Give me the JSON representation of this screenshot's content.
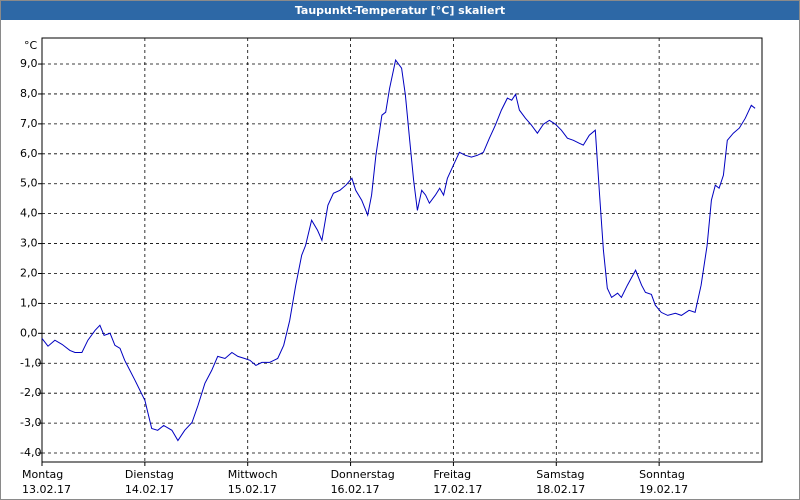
{
  "chart_data": {
    "type": "line",
    "title": "Taupunkt-Temperatur [°C] skaliert",
    "y_unit": "°C",
    "xlim": [
      0,
      168
    ],
    "ylim": [
      -4.3,
      9.87
    ],
    "yticks": [
      {
        "value": 9,
        "label": "9,0"
      },
      {
        "value": 8,
        "label": "8,0"
      },
      {
        "value": 7,
        "label": "7,0"
      },
      {
        "value": 6,
        "label": "6,0"
      },
      {
        "value": 5,
        "label": "5,0"
      },
      {
        "value": 4,
        "label": "4,0"
      },
      {
        "value": 3,
        "label": "3,0"
      },
      {
        "value": 2,
        "label": "2,0"
      },
      {
        "value": 1,
        "label": "1,0"
      },
      {
        "value": 0,
        "label": "0,0"
      },
      {
        "value": -1,
        "label": "-1,0"
      },
      {
        "value": -2,
        "label": "-2,0"
      },
      {
        "value": -3,
        "label": "-3,0"
      },
      {
        "value": -4,
        "label": "-4,0"
      }
    ],
    "xticks": [
      {
        "value": 0,
        "label": [
          "Montag",
          "13.02.17"
        ]
      },
      {
        "value": 24,
        "label": [
          "Dienstag",
          "14.02.17"
        ]
      },
      {
        "value": 48,
        "label": [
          "Mittwoch",
          "15.02.17"
        ]
      },
      {
        "value": 72,
        "label": [
          "Donnerstag",
          "16.02.17"
        ]
      },
      {
        "value": 96,
        "label": [
          "Freitag",
          "17.02.17"
        ]
      },
      {
        "value": 120,
        "label": [
          "Samstag",
          "18.02.17"
        ]
      },
      {
        "value": 144,
        "label": [
          "Sonntag",
          "19.02.17"
        ]
      }
    ],
    "grid": true,
    "series": [
      {
        "color": "#0000c0",
        "x": [
          0,
          1.4,
          3,
          4.7,
          6.5,
          7.7,
          9.3,
          10.7,
          12.4,
          13.5,
          14.5,
          15.9,
          17,
          18.2,
          19.3,
          21.7,
          24,
          25.6,
          27,
          28.4,
          30.3,
          31.7,
          33.3,
          35,
          36.4,
          38,
          39.6,
          41,
          42.7,
          44.3,
          45.7,
          47.3,
          48.5,
          49.9,
          51.3,
          53.1,
          55,
          56.4,
          57.8,
          59.2,
          60.6,
          61.5,
          62.9,
          64.3,
          65.3,
          66.7,
          68,
          69.5,
          70.9,
          72.3,
          73.2,
          74.6,
          76,
          76.9,
          77.9,
          79.3,
          80.2,
          81.1,
          82.5,
          83.9,
          84.8,
          85.8,
          86.7,
          87.6,
          88.6,
          89.5,
          90.4,
          91.8,
          92.8,
          93.7,
          94.6,
          96,
          97.4,
          98.8,
          100.2,
          101.6,
          103,
          104.4,
          105.8,
          107.2,
          108.6,
          109.6,
          110.5,
          111.4,
          112.8,
          114.2,
          115.6,
          117,
          118.4,
          119.8,
          121.2,
          122.6,
          124,
          125.4,
          126.3,
          127.7,
          129.1,
          130.1,
          131,
          131.9,
          132.9,
          134.3,
          135.2,
          136.6,
          138.5,
          139.9,
          140.8,
          142.2,
          143.1,
          144.5,
          146,
          147.8,
          149.2,
          151,
          152.4,
          153.8,
          155.2,
          156.2,
          157.1,
          158,
          159,
          159.9,
          161.3,
          162.7,
          164.1,
          165.5,
          166.4
        ],
        "values": [
          -0.17,
          -0.43,
          -0.23,
          -0.37,
          -0.57,
          -0.64,
          -0.64,
          -0.23,
          0.1,
          0.27,
          -0.07,
          0,
          -0.4,
          -0.5,
          -0.9,
          -1.57,
          -2.24,
          -3.18,
          -3.24,
          -3.08,
          -3.24,
          -3.58,
          -3.24,
          -2.98,
          -2.41,
          -1.67,
          -1.24,
          -0.77,
          -0.84,
          -0.64,
          -0.77,
          -0.84,
          -0.9,
          -1.07,
          -0.97,
          -0.97,
          -0.84,
          -0.4,
          0.43,
          1.6,
          2.61,
          2.94,
          3.78,
          3.44,
          3.11,
          4.28,
          4.68,
          4.78,
          4.95,
          5.18,
          4.78,
          4.45,
          3.95,
          4.62,
          5.95,
          7.29,
          7.39,
          8.19,
          9.13,
          8.86,
          7.96,
          6.45,
          5.12,
          4.11,
          4.78,
          4.62,
          4.35,
          4.62,
          4.85,
          4.62,
          5.18,
          5.62,
          6.05,
          5.95,
          5.89,
          5.95,
          6.05,
          6.52,
          6.96,
          7.46,
          7.86,
          7.79,
          7.99,
          7.46,
          7.19,
          6.96,
          6.69,
          6.99,
          7.12,
          6.99,
          6.79,
          6.52,
          6.45,
          6.35,
          6.29,
          6.62,
          6.79,
          4.62,
          2.78,
          1.51,
          1.2,
          1.34,
          1.2,
          1.61,
          2.11,
          1.61,
          1.37,
          1.3,
          0.94,
          0.7,
          0.6,
          0.67,
          0.6,
          0.77,
          0.7,
          1.61,
          2.94,
          4.45,
          4.95,
          4.85,
          5.28,
          6.45,
          6.69,
          6.86,
          7.19,
          7.62,
          7.52
        ]
      }
    ]
  }
}
